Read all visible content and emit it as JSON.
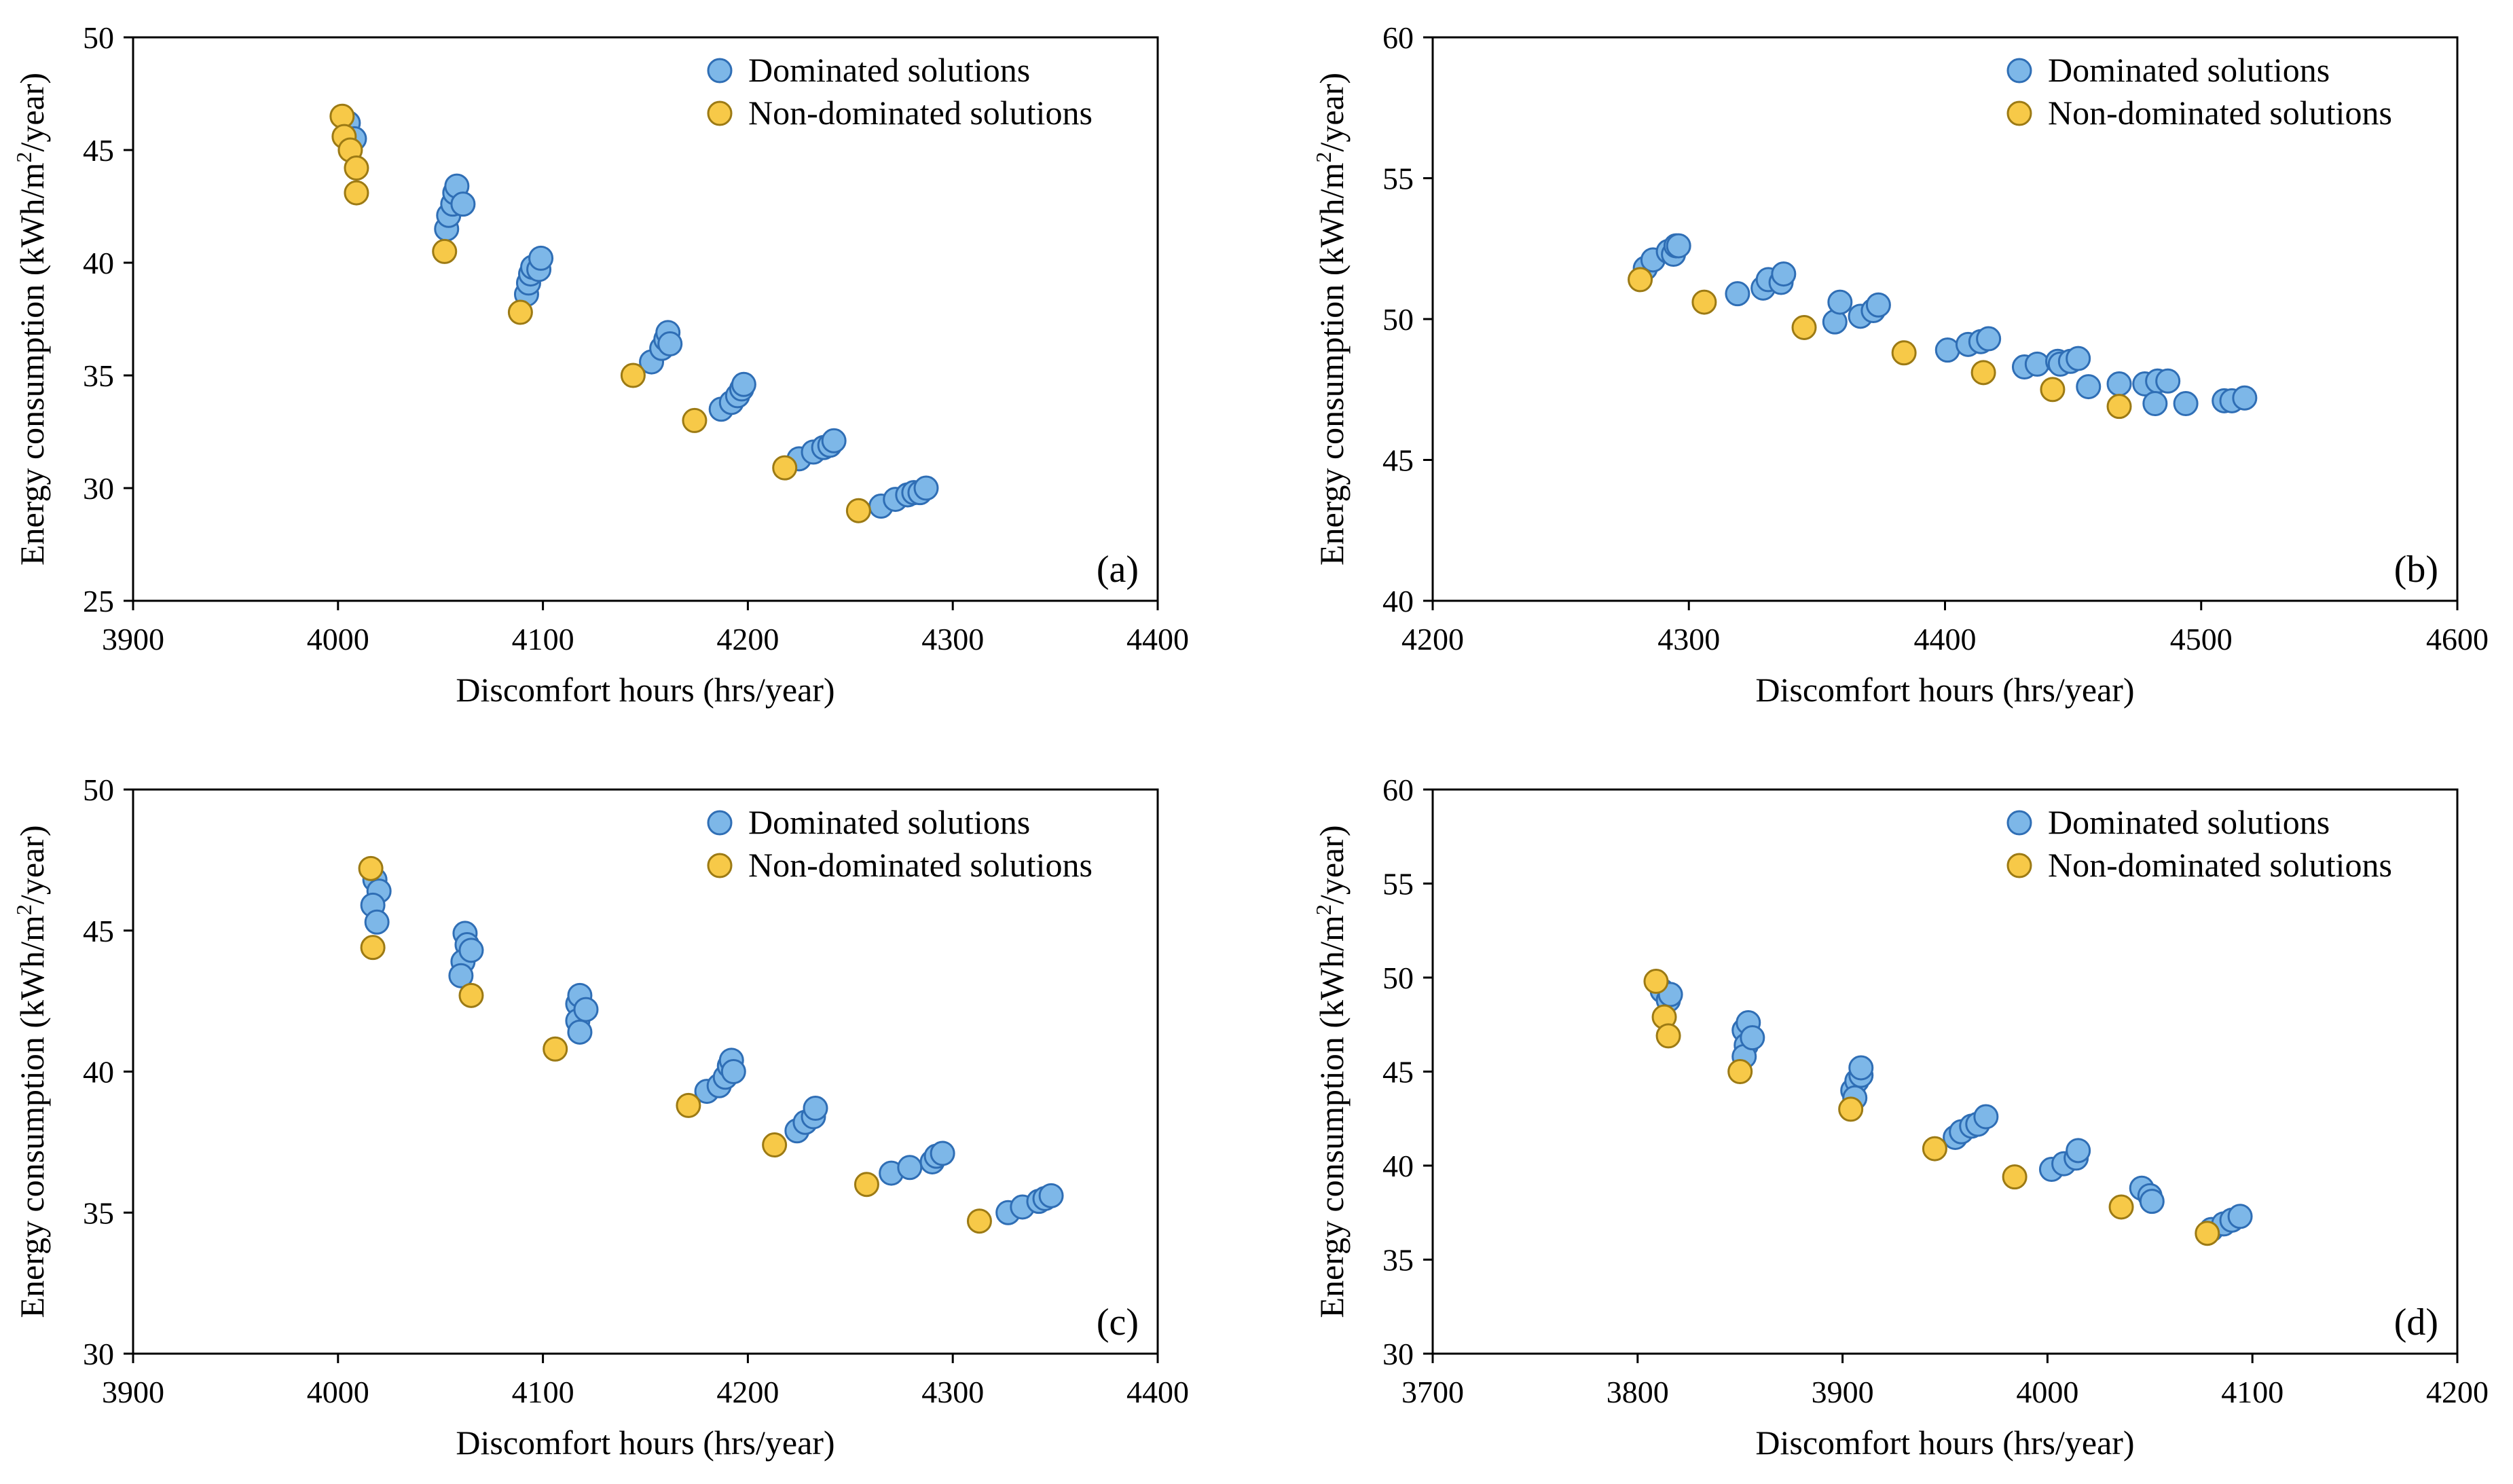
{
  "chart_data": [
    {
      "type": "scatter",
      "panel_label": "(a)",
      "xlabel": "Discomfort hours (hrs/year)",
      "ylabel_main": "Energy consumption (kWh/m",
      "ylabel_sup": "2",
      "ylabel_end": "/year)",
      "xlim": [
        3900,
        4400
      ],
      "ylim": [
        25,
        50
      ],
      "xticks": [
        3900,
        4000,
        4100,
        4200,
        4300,
        4400
      ],
      "yticks": [
        25,
        30,
        35,
        40,
        45,
        50
      ],
      "legend": [
        "Dominated solutions",
        "Non-dominated solutions"
      ],
      "legend_position": "top-right",
      "colors": {
        "dominated": "#7DB7E8",
        "dominated_edge": "#2F6EB5",
        "non_dominated": "#F7C948",
        "non_dominated_edge": "#9C7A14"
      },
      "series": [
        {
          "name": "Dominated solutions",
          "points": [
            [
              4005,
              46.2
            ],
            [
              4008,
              45.5
            ],
            [
              4053,
              41.5
            ],
            [
              4054,
              42.1
            ],
            [
              4056,
              42.6
            ],
            [
              4057,
              43.1
            ],
            [
              4058,
              43.4
            ],
            [
              4061,
              42.6
            ],
            [
              4092,
              38.6
            ],
            [
              4093,
              39.1
            ],
            [
              4094,
              39.5
            ],
            [
              4095,
              39.8
            ],
            [
              4098,
              39.7
            ],
            [
              4099,
              40.2
            ],
            [
              4153,
              35.6
            ],
            [
              4158,
              36.2
            ],
            [
              4160,
              36.6
            ],
            [
              4161,
              36.9
            ],
            [
              4162,
              36.4
            ],
            [
              4187,
              33.5
            ],
            [
              4192,
              33.8
            ],
            [
              4195,
              34.1
            ],
            [
              4197,
              34.4
            ],
            [
              4198,
              34.6
            ],
            [
              4225,
              31.3
            ],
            [
              4232,
              31.6
            ],
            [
              4237,
              31.8
            ],
            [
              4240,
              31.9
            ],
            [
              4242,
              32.1
            ],
            [
              4265,
              29.2
            ],
            [
              4272,
              29.5
            ],
            [
              4278,
              29.7
            ],
            [
              4281,
              29.8
            ],
            [
              4284,
              29.8
            ],
            [
              4287,
              30.0
            ]
          ]
        },
        {
          "name": "Non-dominated solutions",
          "points": [
            [
              4002,
              46.5
            ],
            [
              4003,
              45.6
            ],
            [
              4006,
              45.0
            ],
            [
              4009,
              44.2
            ],
            [
              4009,
              43.1
            ],
            [
              4052,
              40.5
            ],
            [
              4089,
              37.8
            ],
            [
              4144,
              35.0
            ],
            [
              4174,
              33.0
            ],
            [
              4218,
              30.9
            ],
            [
              4254,
              29.0
            ]
          ]
        }
      ]
    },
    {
      "type": "scatter",
      "panel_label": "(b)",
      "xlabel": "Discomfort hours (hrs/year)",
      "ylabel_main": "Energy consumption (kWh/m",
      "ylabel_sup": "2",
      "ylabel_end": "/year)",
      "xlim": [
        4200,
        4600
      ],
      "ylim": [
        40,
        60
      ],
      "xticks": [
        4200,
        4300,
        4400,
        4500,
        4600
      ],
      "yticks": [
        40,
        45,
        50,
        55,
        60
      ],
      "legend": [
        "Dominated solutions",
        "Non-dominated solutions"
      ],
      "legend_position": "top-right",
      "colors": {
        "dominated": "#7DB7E8",
        "dominated_edge": "#2F6EB5",
        "non_dominated": "#F7C948",
        "non_dominated_edge": "#9C7A14"
      },
      "series": [
        {
          "name": "Dominated solutions",
          "points": [
            [
              4283,
              51.8
            ],
            [
              4286,
              52.1
            ],
            [
              4292,
              52.4
            ],
            [
              4294,
              52.3
            ],
            [
              4295,
              52.6
            ],
            [
              4296,
              52.6
            ],
            [
              4319,
              50.9
            ],
            [
              4329,
              51.1
            ],
            [
              4331,
              51.4
            ],
            [
              4336,
              51.3
            ],
            [
              4337,
              51.6
            ],
            [
              4357,
              49.9
            ],
            [
              4359,
              50.6
            ],
            [
              4367,
              50.1
            ],
            [
              4372,
              50.3
            ],
            [
              4374,
              50.5
            ],
            [
              4401,
              48.9
            ],
            [
              4409,
              49.1
            ],
            [
              4414,
              49.2
            ],
            [
              4417,
              49.3
            ],
            [
              4431,
              48.3
            ],
            [
              4436,
              48.4
            ],
            [
              4444,
              48.5
            ],
            [
              4445,
              48.4
            ],
            [
              4449,
              48.5
            ],
            [
              4452,
              48.6
            ],
            [
              4456,
              47.6
            ],
            [
              4468,
              47.7
            ],
            [
              4478,
              47.7
            ],
            [
              4483,
              47.8
            ],
            [
              4487,
              47.8
            ],
            [
              4482,
              47.0
            ],
            [
              4494,
              47.0
            ],
            [
              4509,
              47.1
            ],
            [
              4512,
              47.1
            ],
            [
              4517,
              47.2
            ]
          ]
        },
        {
          "name": "Non-dominated solutions",
          "points": [
            [
              4281,
              51.4
            ],
            [
              4306,
              50.6
            ],
            [
              4345,
              49.7
            ],
            [
              4384,
              48.8
            ],
            [
              4415,
              48.1
            ],
            [
              4442,
              47.5
            ],
            [
              4468,
              46.9
            ]
          ]
        }
      ]
    },
    {
      "type": "scatter",
      "panel_label": "(c)",
      "xlabel": "Discomfort hours (hrs/year)",
      "ylabel_main": "Energy consumption (kWh/m",
      "ylabel_sup": "2",
      "ylabel_end": "/year)",
      "xlim": [
        3900,
        4400
      ],
      "ylim": [
        30,
        50
      ],
      "xticks": [
        3900,
        4000,
        4100,
        4200,
        4300,
        4400
      ],
      "yticks": [
        30,
        35,
        40,
        45,
        50
      ],
      "legend": [
        "Dominated solutions",
        "Non-dominated solutions"
      ],
      "legend_position": "top-right",
      "colors": {
        "dominated": "#7DB7E8",
        "dominated_edge": "#2F6EB5",
        "non_dominated": "#F7C948",
        "non_dominated_edge": "#9C7A14"
      },
      "series": [
        {
          "name": "Dominated solutions",
          "points": [
            [
              4018,
              46.8
            ],
            [
              4020,
              46.4
            ],
            [
              4017,
              45.9
            ],
            [
              4019,
              45.3
            ],
            [
              4062,
              44.9
            ],
            [
              4063,
              44.5
            ],
            [
              4061,
              43.9
            ],
            [
              4060,
              43.4
            ],
            [
              4065,
              44.3
            ],
            [
              4117,
              42.4
            ],
            [
              4118,
              42.7
            ],
            [
              4117,
              41.8
            ],
            [
              4118,
              41.4
            ],
            [
              4121,
              42.2
            ],
            [
              4180,
              39.3
            ],
            [
              4186,
              39.5
            ],
            [
              4189,
              39.8
            ],
            [
              4191,
              40.2
            ],
            [
              4192,
              40.4
            ],
            [
              4193,
              40.0
            ],
            [
              4224,
              37.9
            ],
            [
              4228,
              38.2
            ],
            [
              4232,
              38.4
            ],
            [
              4233,
              38.7
            ],
            [
              4270,
              36.4
            ],
            [
              4279,
              36.6
            ],
            [
              4290,
              36.8
            ],
            [
              4292,
              37.0
            ],
            [
              4295,
              37.1
            ],
            [
              4327,
              35.0
            ],
            [
              4334,
              35.2
            ],
            [
              4342,
              35.4
            ],
            [
              4345,
              35.5
            ],
            [
              4348,
              35.6
            ]
          ]
        },
        {
          "name": "Non-dominated solutions",
          "points": [
            [
              4016,
              47.2
            ],
            [
              4017,
              44.4
            ],
            [
              4065,
              42.7
            ],
            [
              4106,
              40.8
            ],
            [
              4171,
              38.8
            ],
            [
              4213,
              37.4
            ],
            [
              4258,
              36.0
            ],
            [
              4313,
              34.7
            ]
          ]
        }
      ]
    },
    {
      "type": "scatter",
      "panel_label": "(d)",
      "xlabel": "Discomfort hours (hrs/year)",
      "ylabel_main": "Energy consumption (kWh/m",
      "ylabel_sup": "2",
      "ylabel_end": "/year)",
      "xlim": [
        3700,
        4200
      ],
      "ylim": [
        30,
        60
      ],
      "xticks": [
        3700,
        3800,
        3900,
        4000,
        4100,
        4200
      ],
      "yticks": [
        30,
        35,
        40,
        45,
        50,
        55,
        60
      ],
      "legend": [
        "Dominated solutions",
        "Non-dominated solutions"
      ],
      "legend_position": "top-right",
      "colors": {
        "dominated": "#7DB7E8",
        "dominated_edge": "#2F6EB5",
        "non_dominated": "#F7C948",
        "non_dominated_edge": "#9C7A14"
      },
      "series": [
        {
          "name": "Dominated solutions",
          "points": [
            [
              3812,
              49.3
            ],
            [
              3815,
              48.8
            ],
            [
              3816,
              49.1
            ],
            [
              3852,
              47.2
            ],
            [
              3853,
              46.4
            ],
            [
              3852,
              45.8
            ],
            [
              3854,
              47.6
            ],
            [
              3856,
              46.8
            ],
            [
              3905,
              44.0
            ],
            [
              3907,
              44.5
            ],
            [
              3909,
              44.8
            ],
            [
              3909,
              45.2
            ],
            [
              3906,
              43.6
            ],
            [
              3955,
              41.5
            ],
            [
              3958,
              41.8
            ],
            [
              3963,
              42.1
            ],
            [
              3966,
              42.2
            ],
            [
              3970,
              42.6
            ],
            [
              4002,
              39.8
            ],
            [
              4008,
              40.1
            ],
            [
              4014,
              40.4
            ],
            [
              4015,
              40.8
            ],
            [
              4046,
              38.8
            ],
            [
              4050,
              38.4
            ],
            [
              4051,
              38.1
            ],
            [
              4080,
              36.6
            ],
            [
              4086,
              36.9
            ],
            [
              4090,
              37.1
            ],
            [
              4094,
              37.3
            ]
          ]
        },
        {
          "name": "Non-dominated solutions",
          "points": [
            [
              3809,
              49.8
            ],
            [
              3813,
              47.9
            ],
            [
              3815,
              46.9
            ],
            [
              3850,
              45.0
            ],
            [
              3904,
              43.0
            ],
            [
              3945,
              40.9
            ],
            [
              3984,
              39.4
            ],
            [
              4036,
              37.8
            ],
            [
              4078,
              36.4
            ]
          ]
        }
      ]
    }
  ]
}
